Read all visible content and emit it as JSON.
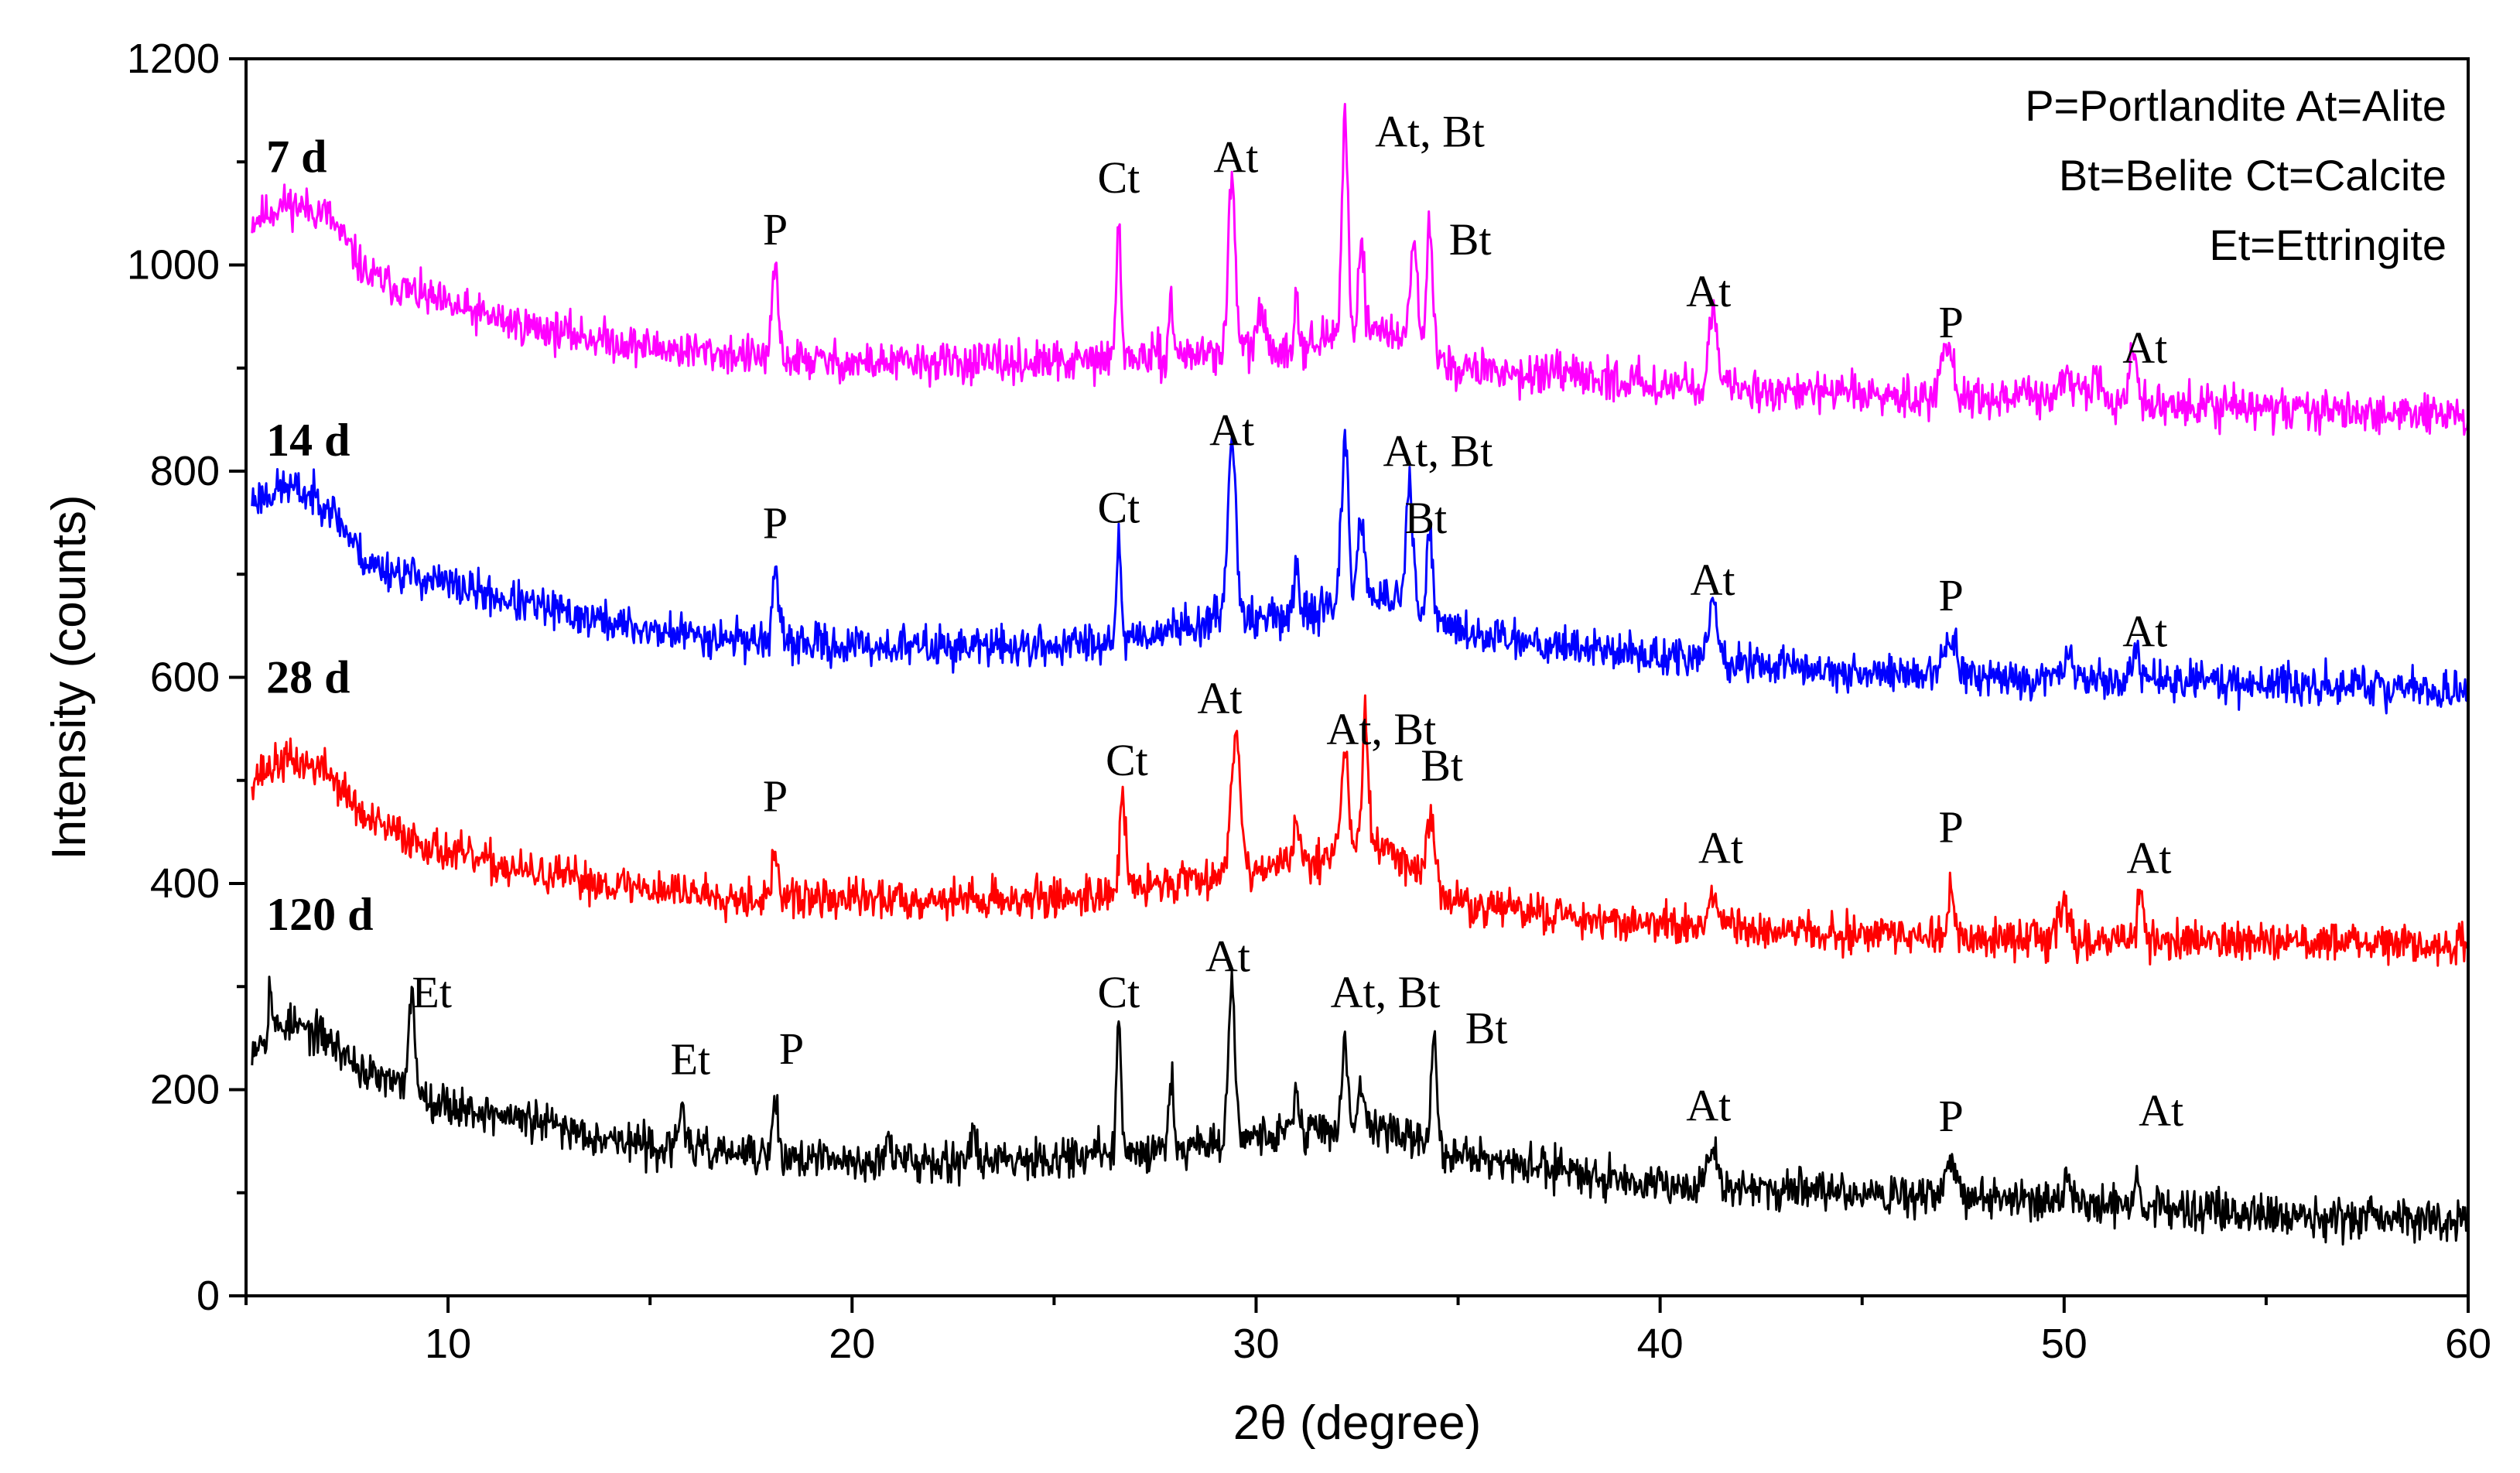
{
  "chart_data": {
    "type": "line",
    "xlabel": "2θ (degree)",
    "ylabel": "Intensity (counts)",
    "xlim": [
      5,
      60
    ],
    "ylim": [
      0,
      1200
    ],
    "xticks": [
      10,
      20,
      30,
      40,
      50,
      60
    ],
    "yticks": [
      0,
      200,
      400,
      600,
      800,
      1000,
      1200
    ],
    "legend_lines": [
      "P=Portlandite  At=Alite",
      "Bt=Belite  Ct=Calcite",
      "Et=Ettringite"
    ],
    "legend_position": "top-right",
    "series": [
      {
        "name": "7 d",
        "color": "#ff00ff",
        "baseline": [
          [
            5,
            1040
          ],
          [
            6,
            1060
          ],
          [
            7,
            1050
          ],
          [
            8,
            990
          ],
          [
            10,
            960
          ],
          [
            12,
            940
          ],
          [
            15,
            920
          ],
          [
            18,
            910
          ],
          [
            20,
            905
          ],
          [
            25,
            905
          ],
          [
            27,
            910
          ],
          [
            29,
            915
          ],
          [
            31,
            920
          ],
          [
            33,
            940
          ],
          [
            35,
            900
          ],
          [
            40,
            885
          ],
          [
            42,
            880
          ],
          [
            45,
            875
          ],
          [
            50,
            870
          ],
          [
            55,
            860
          ],
          [
            60,
            855
          ]
        ],
        "peaks": [
          [
            18.1,
            90,
            0.1
          ],
          [
            26.6,
            135,
            0.08
          ],
          [
            27.9,
            50,
            0.08
          ],
          [
            29.4,
            170,
            0.12
          ],
          [
            30.1,
            40,
            0.12
          ],
          [
            31.0,
            50,
            0.08
          ],
          [
            32.2,
            220,
            0.1
          ],
          [
            32.6,
            90,
            0.1
          ],
          [
            33.9,
            110,
            0.12
          ],
          [
            34.3,
            130,
            0.1
          ],
          [
            41.3,
            70,
            0.15
          ],
          [
            47.1,
            50,
            0.2
          ],
          [
            50.0,
            25,
            0.2
          ],
          [
            50.8,
            30,
            0.15
          ],
          [
            51.7,
            50,
            0.12
          ]
        ],
        "noise": 12,
        "seed": 11
      },
      {
        "name": "14 d",
        "color": "#0000ff",
        "baseline": [
          [
            5,
            770
          ],
          [
            6,
            785
          ],
          [
            7,
            770
          ],
          [
            8,
            710
          ],
          [
            10,
            690
          ],
          [
            12,
            670
          ],
          [
            15,
            645
          ],
          [
            18,
            635
          ],
          [
            20,
            630
          ],
          [
            25,
            630
          ],
          [
            27,
            640
          ],
          [
            29,
            655
          ],
          [
            31,
            660
          ],
          [
            33,
            680
          ],
          [
            35,
            645
          ],
          [
            40,
            620
          ],
          [
            45,
            605
          ],
          [
            50,
            600
          ],
          [
            55,
            595
          ],
          [
            60,
            585
          ]
        ],
        "peaks": [
          [
            18.1,
            70,
            0.1
          ],
          [
            26.6,
            95,
            0.08
          ],
          [
            29.4,
            175,
            0.15
          ],
          [
            31.0,
            40,
            0.1
          ],
          [
            32.2,
            160,
            0.12
          ],
          [
            32.6,
            80,
            0.12
          ],
          [
            33.8,
            120,
            0.12
          ],
          [
            34.3,
            80,
            0.1
          ],
          [
            41.3,
            55,
            0.15
          ],
          [
            47.2,
            35,
            0.2
          ],
          [
            50.0,
            20,
            0.2
          ],
          [
            51.8,
            25,
            0.12
          ]
        ],
        "noise": 12,
        "seed": 23
      },
      {
        "name": "28 d",
        "color": "#ff0000",
        "baseline": [
          [
            5,
            500
          ],
          [
            6,
            520
          ],
          [
            7,
            510
          ],
          [
            8,
            460
          ],
          [
            10,
            430
          ],
          [
            12,
            410
          ],
          [
            15,
            395
          ],
          [
            18,
            385
          ],
          [
            20,
            385
          ],
          [
            25,
            385
          ],
          [
            27,
            395
          ],
          [
            29,
            410
          ],
          [
            31,
            420
          ],
          [
            33,
            440
          ],
          [
            35,
            380
          ],
          [
            40,
            360
          ],
          [
            45,
            350
          ],
          [
            50,
            345
          ],
          [
            55,
            345
          ],
          [
            60,
            340
          ]
        ],
        "peaks": [
          [
            18.1,
            45,
            0.1
          ],
          [
            26.7,
            90,
            0.1
          ],
          [
            29.5,
            140,
            0.15
          ],
          [
            31.0,
            35,
            0.1
          ],
          [
            32.2,
            100,
            0.12
          ],
          [
            32.7,
            125,
            0.1
          ],
          [
            34.3,
            60,
            0.15
          ],
          [
            41.3,
            25,
            0.15
          ],
          [
            47.2,
            45,
            0.1
          ],
          [
            50.0,
            35,
            0.2
          ],
          [
            51.9,
            35,
            0.12
          ]
        ],
        "noise": 12,
        "seed": 37
      },
      {
        "name": "120 d",
        "color": "#000000",
        "baseline": [
          [
            5,
            240
          ],
          [
            6,
            265
          ],
          [
            7,
            250
          ],
          [
            8,
            215
          ],
          [
            10,
            185
          ],
          [
            12,
            170
          ],
          [
            15,
            145
          ],
          [
            18,
            135
          ],
          [
            20,
            130
          ],
          [
            25,
            135
          ],
          [
            27,
            140
          ],
          [
            29,
            150
          ],
          [
            31,
            160
          ],
          [
            33,
            165
          ],
          [
            35,
            135
          ],
          [
            40,
            110
          ],
          [
            45,
            100
          ],
          [
            50,
            90
          ],
          [
            55,
            80
          ],
          [
            60,
            72
          ]
        ],
        "peaks": [
          [
            5.6,
            50,
            0.06
          ],
          [
            9.1,
            90,
            0.12
          ],
          [
            15.8,
            45,
            0.1
          ],
          [
            18.1,
            50,
            0.1
          ],
          [
            20.9,
            20,
            0.1
          ],
          [
            23.0,
            20,
            0.1
          ],
          [
            26.6,
            120,
            0.08
          ],
          [
            27.9,
            70,
            0.08
          ],
          [
            29.4,
            150,
            0.12
          ],
          [
            31.0,
            40,
            0.08
          ],
          [
            32.2,
            85,
            0.1
          ],
          [
            32.6,
            40,
            0.1
          ],
          [
            34.4,
            110,
            0.1
          ],
          [
            41.3,
            35,
            0.15
          ],
          [
            47.2,
            30,
            0.2
          ],
          [
            50.0,
            15,
            0.2
          ],
          [
            51.8,
            25,
            0.12
          ]
        ],
        "noise": 12,
        "seed": 53
      }
    ],
    "series_labels": [
      {
        "text": "7 d",
        "x": 5.5,
        "y": 1090
      },
      {
        "text": "14 d",
        "x": 5.5,
        "y": 815
      },
      {
        "text": "28 d",
        "x": 5.5,
        "y": 585
      },
      {
        "text": "120 d",
        "x": 5.5,
        "y": 355
      }
    ],
    "annotations": [
      {
        "text": "P",
        "x": 18.1,
        "y": 1020
      },
      {
        "text": "Ct",
        "x": 26.6,
        "y": 1070
      },
      {
        "text": "At",
        "x": 29.5,
        "y": 1090
      },
      {
        "text": "At, Bt",
        "x": 34.3,
        "y": 1115
      },
      {
        "text": "Bt",
        "x": 35.3,
        "y": 1010
      },
      {
        "text": "At",
        "x": 41.2,
        "y": 960
      },
      {
        "text": "P",
        "x": 47.2,
        "y": 930
      },
      {
        "text": "At",
        "x": 52.0,
        "y": 905
      },
      {
        "text": "P",
        "x": 18.1,
        "y": 735
      },
      {
        "text": "Ct",
        "x": 26.6,
        "y": 750
      },
      {
        "text": "At",
        "x": 29.4,
        "y": 825
      },
      {
        "text": "At, Bt",
        "x": 34.5,
        "y": 805
      },
      {
        "text": "Bt",
        "x": 34.2,
        "y": 740
      },
      {
        "text": "At",
        "x": 41.3,
        "y": 680
      },
      {
        "text": "P",
        "x": 47.2,
        "y": 665
      },
      {
        "text": "At",
        "x": 52.0,
        "y": 630
      },
      {
        "text": "P",
        "x": 18.1,
        "y": 470
      },
      {
        "text": "Ct",
        "x": 26.8,
        "y": 505
      },
      {
        "text": "At",
        "x": 29.1,
        "y": 565
      },
      {
        "text": "At, Bt",
        "x": 33.1,
        "y": 535
      },
      {
        "text": "Bt",
        "x": 34.6,
        "y": 500
      },
      {
        "text": "At",
        "x": 41.5,
        "y": 420
      },
      {
        "text": "P",
        "x": 47.2,
        "y": 440
      },
      {
        "text": "At",
        "x": 52.1,
        "y": 410
      },
      {
        "text": "Et",
        "x": 9.6,
        "y": 280
      },
      {
        "text": "Et",
        "x": 16.0,
        "y": 215
      },
      {
        "text": "P",
        "x": 18.5,
        "y": 225
      },
      {
        "text": "Ct",
        "x": 26.6,
        "y": 280
      },
      {
        "text": "At",
        "x": 29.3,
        "y": 315
      },
      {
        "text": "At, Bt",
        "x": 33.2,
        "y": 280
      },
      {
        "text": "Bt",
        "x": 35.7,
        "y": 245
      },
      {
        "text": "At",
        "x": 41.2,
        "y": 170
      },
      {
        "text": "P",
        "x": 47.2,
        "y": 160
      },
      {
        "text": "At",
        "x": 52.4,
        "y": 165
      }
    ]
  }
}
